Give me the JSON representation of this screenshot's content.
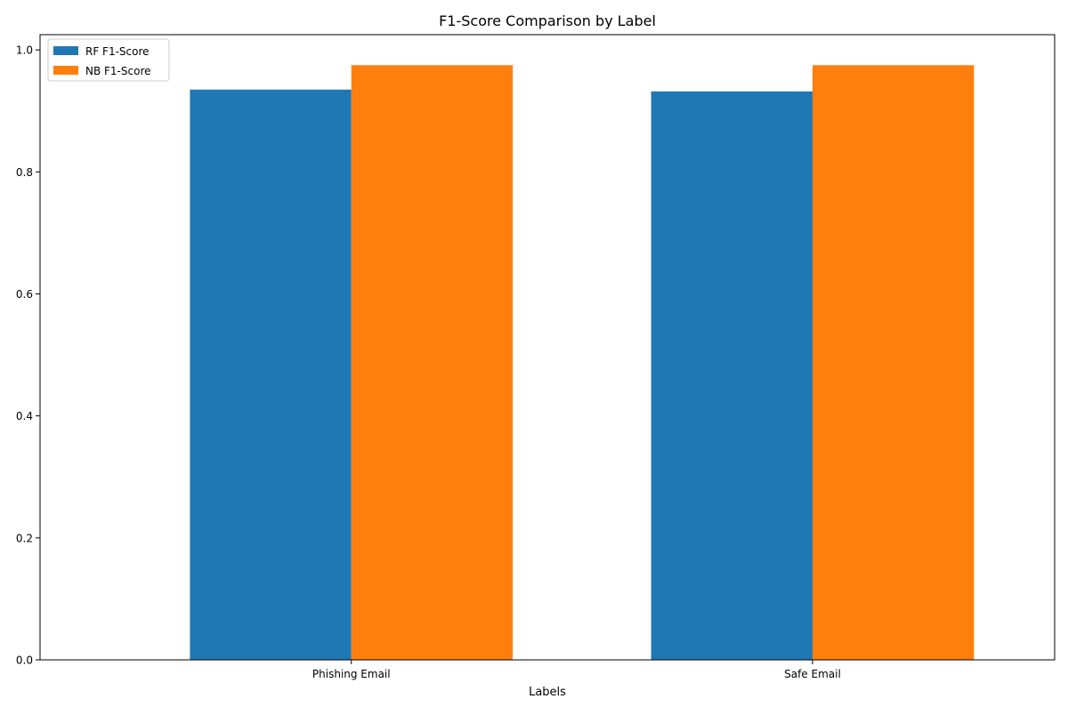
{
  "chart_data": {
    "type": "bar",
    "title": "F1-Score Comparison by Label",
    "xlabel": "Labels",
    "ylabel": "",
    "categories": [
      "Phishing Email",
      "Safe Email"
    ],
    "series": [
      {
        "name": "RF F1-Score",
        "values": [
          0.935,
          0.932
        ],
        "color": "#1f77b4"
      },
      {
        "name": "NB F1-Score",
        "values": [
          0.975,
          0.975
        ],
        "color": "#ff7f0e"
      }
    ],
    "ylim": [
      0,
      1.025
    ],
    "yticks": [
      "0.0",
      "0.2",
      "0.4",
      "0.6",
      "0.8",
      "1.0"
    ],
    "grid": false,
    "legend_position": "top-left"
  }
}
